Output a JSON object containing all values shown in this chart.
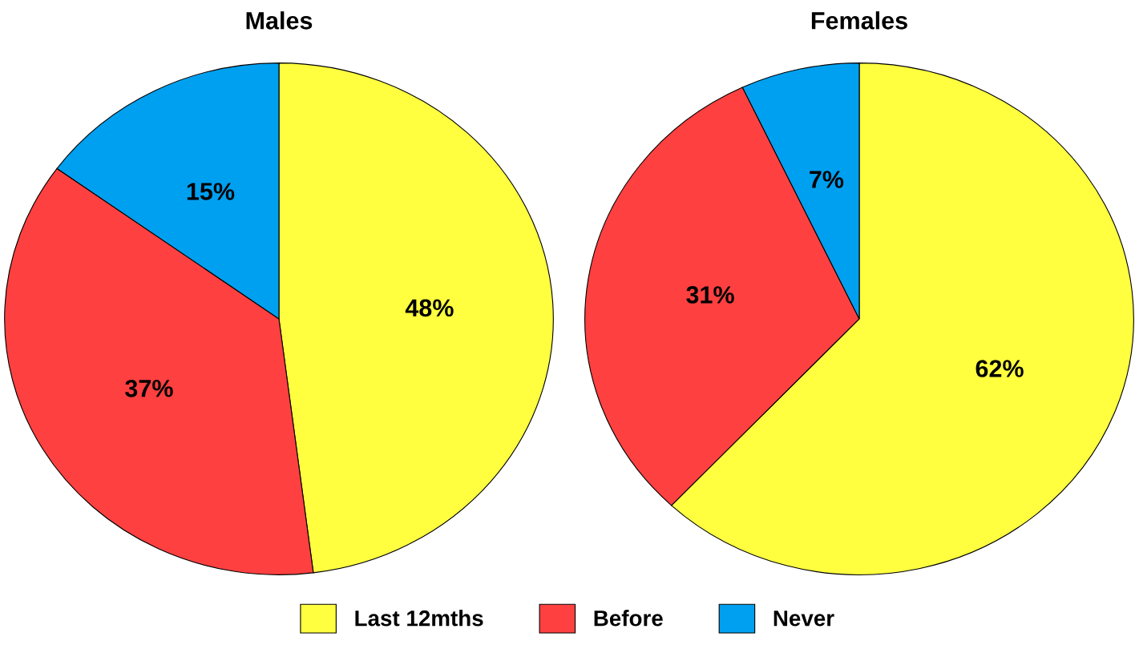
{
  "chart_data": [
    {
      "type": "pie",
      "title": "Males",
      "categories": [
        "Last 12mths",
        "Before",
        "Never"
      ],
      "values": [
        48,
        37,
        15
      ],
      "value_labels": [
        "48%",
        "37%",
        "15%"
      ],
      "colors": [
        "#ffff40",
        "#ff4040",
        "#00a0f0"
      ],
      "legend": "bottom"
    },
    {
      "type": "pie",
      "title": "Females",
      "values": [
        62,
        31,
        7
      ],
      "value_labels": [
        "62%",
        "31%",
        "7%"
      ],
      "colors": [
        "#ffff40",
        "#ff4040",
        "#00a0f0"
      ]
    }
  ]
}
